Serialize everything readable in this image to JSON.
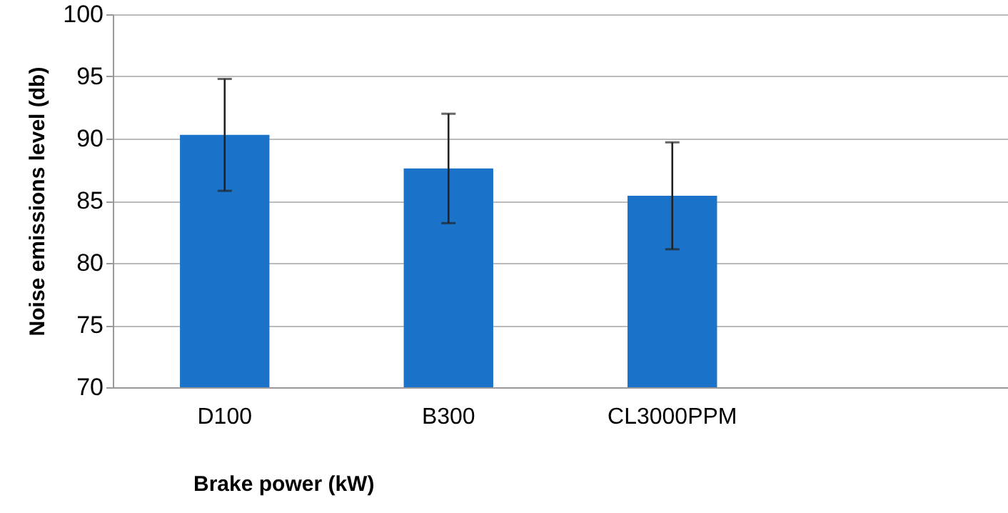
{
  "chart_data": {
    "type": "bar",
    "xlabel": "Brake power (kW)",
    "ylabel": "Noise emissions level (db)",
    "categories": [
      "D100",
      "B300",
      "CL3000PPM",
      null
    ],
    "values": [
      90.3,
      87.6,
      85.4,
      null
    ],
    "errors": [
      [
        85.8,
        94.8
      ],
      [
        83.2,
        92.0
      ],
      [
        81.1,
        89.7
      ],
      null
    ],
    "color": "#1a73c8",
    "ylim": [
      70,
      100
    ],
    "yticks": [
      70,
      75,
      80,
      85,
      90,
      95,
      100
    ],
    "grid": "y"
  }
}
